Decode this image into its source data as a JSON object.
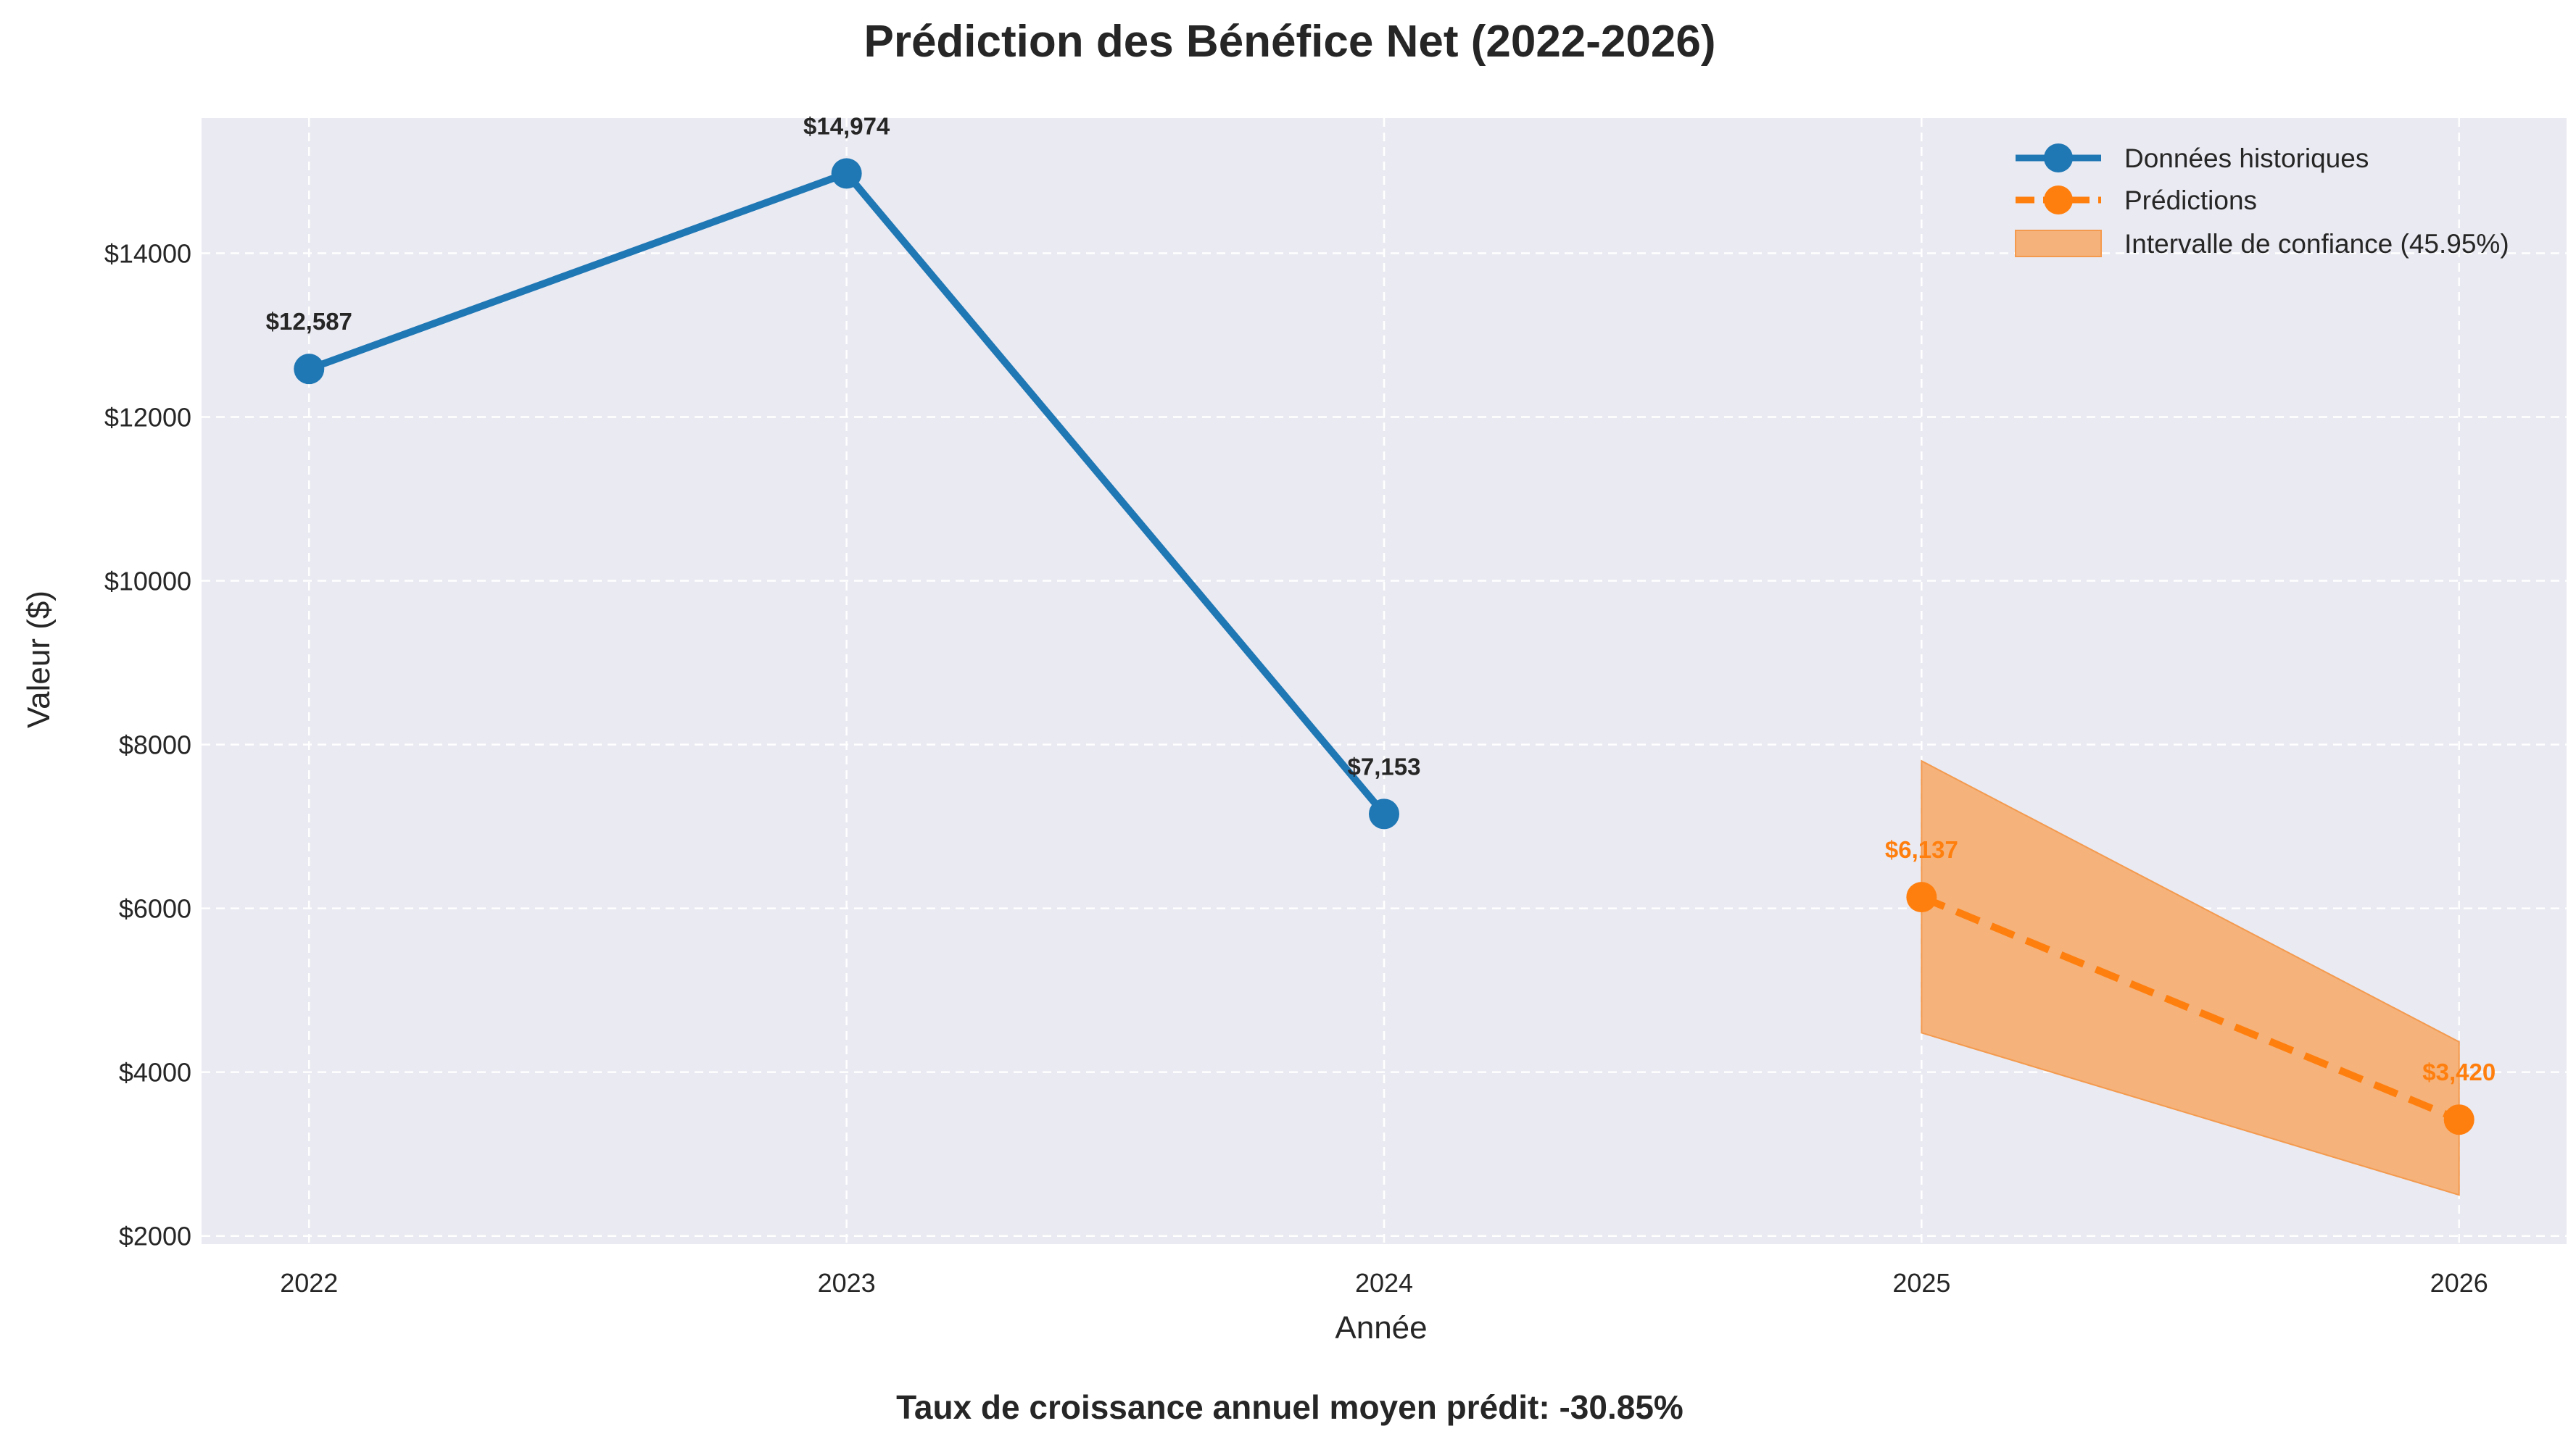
{
  "chart_data": {
    "type": "line",
    "title": "Prédiction des Bénéfice Net (2022-2026)",
    "xlabel": "Année",
    "ylabel": "Valeur ($)",
    "x_ticks": [
      "2022",
      "2023",
      "2024",
      "2025",
      "2026"
    ],
    "y_ticks": [
      "$2000",
      "$4000",
      "$6000",
      "$8000",
      "$10000",
      "$12000",
      "$14000"
    ],
    "y_tick_values": [
      2000,
      4000,
      6000,
      8000,
      10000,
      12000,
      14000
    ],
    "xlim": [
      2021.8,
      2026.2
    ],
    "ylim": [
      1900,
      15650
    ],
    "grid": true,
    "legend_position": "top-right",
    "series": [
      {
        "name": "Données historiques",
        "style": "solid",
        "color": "#1f77b4",
        "x": [
          2022,
          2023,
          2024
        ],
        "y": [
          12587,
          14974,
          7153
        ],
        "labels": [
          "$12,587",
          "$14,974",
          "$7,153"
        ]
      },
      {
        "name": "Prédictions",
        "style": "dashed",
        "color": "#ff7f0e",
        "x": [
          2025,
          2026
        ],
        "y": [
          6137,
          3420
        ],
        "labels": [
          "$6,137",
          "$3,420"
        ]
      }
    ],
    "confidence_band": {
      "name": "Intervalle de confiance (45.95%)",
      "color": "#f5b27a",
      "x": [
        2025,
        2026
      ],
      "lower": [
        4480,
        2500
      ],
      "upper": [
        7800,
        4370
      ]
    },
    "annotation": "Taux de croissance annuel moyen prédit: -30.85%"
  },
  "colors": {
    "plot_background": "#eaeaf2",
    "grid": "#ffffff",
    "text": "#262626"
  }
}
